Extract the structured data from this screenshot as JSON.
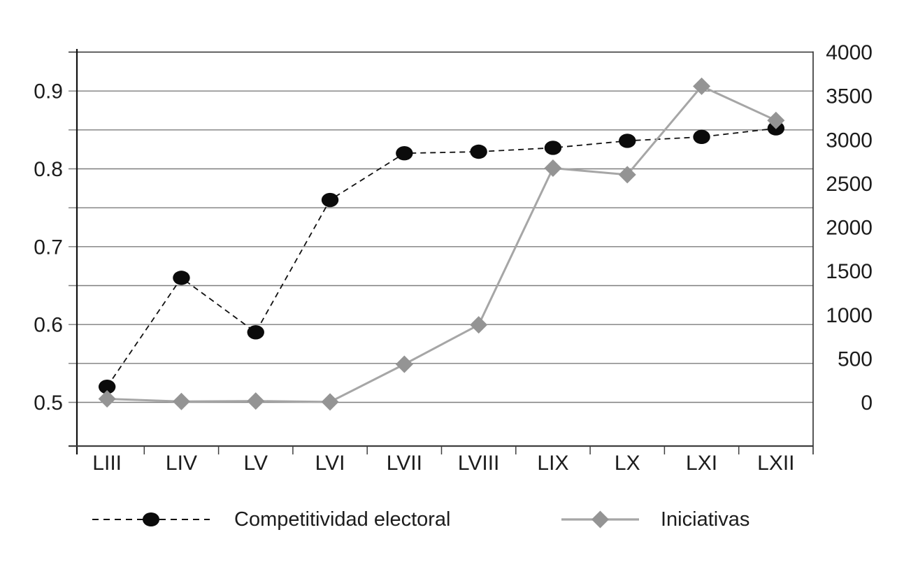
{
  "figure": {
    "background": "#ffffff",
    "title": ""
  },
  "chart_data": {
    "type": "line",
    "categories": [
      "LIII",
      "LIV",
      "LV",
      "LVI",
      "LVII",
      "LVIII",
      "LIX",
      "LX",
      "LXI",
      "LXII"
    ],
    "series": [
      {
        "name": "Competitividad electoral",
        "axis": "left",
        "marker": "circle",
        "line_style": "dashed",
        "line_color": "#111111",
        "marker_color": "#0b0b0b",
        "values": [
          0.52,
          0.66,
          0.59,
          0.76,
          0.82,
          0.822,
          0.827,
          0.836,
          0.841,
          0.852
        ]
      },
      {
        "name": "Iniciativas",
        "axis": "right",
        "marker": "diamond",
        "line_style": "solid",
        "line_color": "#a6a6a6",
        "marker_color": "#949494",
        "values": [
          40,
          10,
          15,
          5,
          435,
          885,
          2675,
          2600,
          3610,
          3220
        ]
      }
    ],
    "axes": {
      "y_left": {
        "range": [
          0.44,
          0.95
        ],
        "gridline_step": 0.05,
        "tick_labels": [
          "0.9",
          "0.8",
          "0.7",
          "0.6",
          "0.5"
        ]
      },
      "y_right": {
        "range": [
          -500,
          4000
        ],
        "step": 500,
        "tick_labels": [
          "4000",
          "3500",
          "3000",
          "2500",
          "2000",
          "1500",
          "1000",
          "500",
          "0"
        ]
      },
      "x": {
        "tick_labels": [
          "LIII",
          "LIV",
          "LV",
          "LVI",
          "LVII",
          "LVIII",
          "LIX",
          "LX",
          "LXI",
          "LXII"
        ]
      }
    },
    "grid": true,
    "legend_position": "bottom",
    "style": {
      "grid_color": "#7d7d7d",
      "border_color": "#2e2e2e",
      "axis_color": "#3f3f3f",
      "text_color": "#1c1c1c"
    }
  }
}
